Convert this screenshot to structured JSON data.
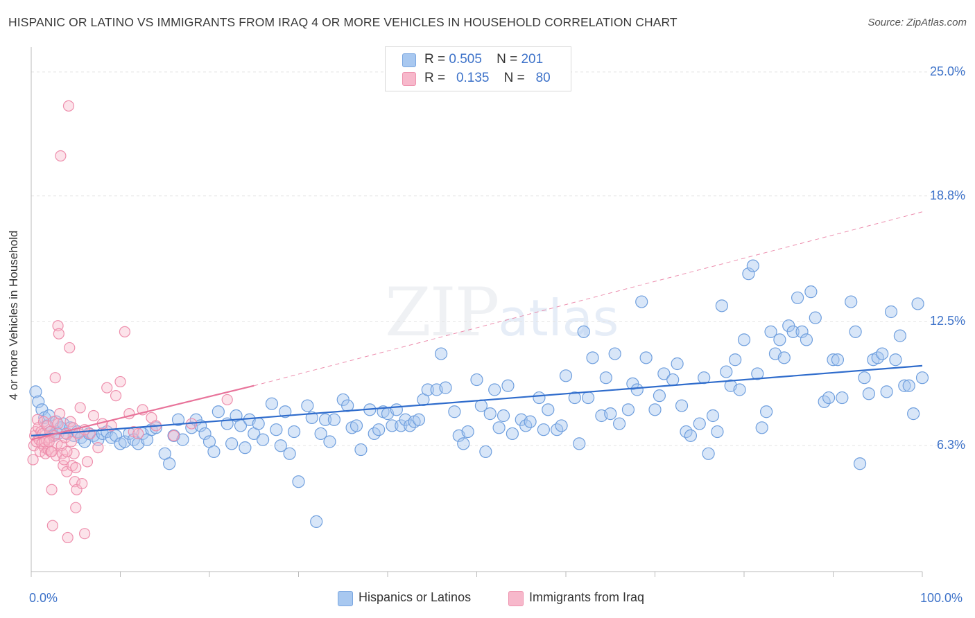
{
  "header": {
    "title": "HISPANIC OR LATINO VS IMMIGRANTS FROM IRAQ 4 OR MORE VEHICLES IN HOUSEHOLD CORRELATION CHART",
    "source": "Source: ZipAtlas.com"
  },
  "watermark": {
    "zip": "ZIP",
    "atlas": "atlas"
  },
  "legend_top": {
    "rows": [
      {
        "r_label": "R =",
        "r_value": "0.505",
        "n_label": "N =",
        "n_value": "201",
        "color": "#a8c8f0"
      },
      {
        "r_label": "R =",
        "r_value": "0.135",
        "n_label": "N =",
        "n_value": "80",
        "color": "#f7b8cb"
      }
    ]
  },
  "legend_bottom": {
    "items": [
      {
        "label": "Hispanics or Latinos",
        "color": "#a8c8f0"
      },
      {
        "label": "Immigrants from Iraq",
        "color": "#f7b8cb"
      }
    ]
  },
  "chart_data": {
    "type": "scatter",
    "title": "HISPANIC OR LATINO VS IMMIGRANTS FROM IRAQ 4 OR MORE VEHICLES IN HOUSEHOLD CORRELATION CHART",
    "xlabel": "",
    "ylabel": "4 or more Vehicles in Household",
    "xlim": [
      0,
      100
    ],
    "ylim": [
      0,
      26
    ],
    "x_tick_labels": [
      "0.0%",
      "100.0%"
    ],
    "y_ticks": [
      6.3,
      12.5,
      18.8,
      25.0
    ],
    "y_tick_labels": [
      "6.3%",
      "12.5%",
      "18.8%",
      "25.0%"
    ],
    "grid": true,
    "colors": {
      "blue": "#3d72c9",
      "blue_fill": "#a8c8f0",
      "pink": "#e8739a",
      "pink_fill": "#f7b8cb"
    },
    "series": [
      {
        "name": "Hispanics or Latinos",
        "color": "#3d72c9",
        "trend": {
          "x": [
            0,
            100
          ],
          "y": [
            6.8,
            10.3
          ]
        },
        "points": [
          [
            0.5,
            9.0
          ],
          [
            0.8,
            8.5
          ],
          [
            1.2,
            8.1
          ],
          [
            1.5,
            7.7
          ],
          [
            1.8,
            7.3
          ],
          [
            2.0,
            7.8
          ],
          [
            2.3,
            7.0
          ],
          [
            2.5,
            6.8
          ],
          [
            2.8,
            7.5
          ],
          [
            3.0,
            6.9
          ],
          [
            3.3,
            7.2
          ],
          [
            3.6,
            7.4
          ],
          [
            4.0,
            6.9
          ],
          [
            4.4,
            7.2
          ],
          [
            4.8,
            6.8
          ],
          [
            5.2,
            7.0
          ],
          [
            5.6,
            6.7
          ],
          [
            6.0,
            6.5
          ],
          [
            6.5,
            6.9
          ],
          [
            7.0,
            6.8
          ],
          [
            7.5,
            6.6
          ],
          [
            8.0,
            6.9
          ],
          [
            8.5,
            7.0
          ],
          [
            9.0,
            6.7
          ],
          [
            9.5,
            6.8
          ],
          [
            10.0,
            6.4
          ],
          [
            10.5,
            6.5
          ],
          [
            11.0,
            6.9
          ],
          [
            11.5,
            6.6
          ],
          [
            12.0,
            6.4
          ],
          [
            12.5,
            6.9
          ],
          [
            13.0,
            6.6
          ],
          [
            13.5,
            7.1
          ],
          [
            14.0,
            7.2
          ],
          [
            15.0,
            5.9
          ],
          [
            15.5,
            5.4
          ],
          [
            16.0,
            6.8
          ],
          [
            16.5,
            7.6
          ],
          [
            17.0,
            6.6
          ],
          [
            18.0,
            7.2
          ],
          [
            18.5,
            7.6
          ],
          [
            19.0,
            7.3
          ],
          [
            19.5,
            6.9
          ],
          [
            20.0,
            6.5
          ],
          [
            20.5,
            6.0
          ],
          [
            21.0,
            8.0
          ],
          [
            22.0,
            7.4
          ],
          [
            22.5,
            6.4
          ],
          [
            23.0,
            7.8
          ],
          [
            23.5,
            7.3
          ],
          [
            24.0,
            6.2
          ],
          [
            24.5,
            7.6
          ],
          [
            25.0,
            6.9
          ],
          [
            25.5,
            7.4
          ],
          [
            26.0,
            6.6
          ],
          [
            27.0,
            8.4
          ],
          [
            27.5,
            7.1
          ],
          [
            28.0,
            6.3
          ],
          [
            28.5,
            8.0
          ],
          [
            29.0,
            5.9
          ],
          [
            29.5,
            7.0
          ],
          [
            30.0,
            4.5
          ],
          [
            31.0,
            8.3
          ],
          [
            31.5,
            7.7
          ],
          [
            32.0,
            2.5
          ],
          [
            32.5,
            6.9
          ],
          [
            33.0,
            7.6
          ],
          [
            33.5,
            6.5
          ],
          [
            34.0,
            7.6
          ],
          [
            35.0,
            8.6
          ],
          [
            35.5,
            8.3
          ],
          [
            36.0,
            7.2
          ],
          [
            36.5,
            7.3
          ],
          [
            37.0,
            6.1
          ],
          [
            38.0,
            8.1
          ],
          [
            38.5,
            6.9
          ],
          [
            39.0,
            7.1
          ],
          [
            39.5,
            8.0
          ],
          [
            40.0,
            7.9
          ],
          [
            40.5,
            7.3
          ],
          [
            41.0,
            8.1
          ],
          [
            41.5,
            7.3
          ],
          [
            42.0,
            7.6
          ],
          [
            42.5,
            7.3
          ],
          [
            43.0,
            7.5
          ],
          [
            43.5,
            7.6
          ],
          [
            44.0,
            8.6
          ],
          [
            44.5,
            9.1
          ],
          [
            45.5,
            9.1
          ],
          [
            46.0,
            10.9
          ],
          [
            46.5,
            9.2
          ],
          [
            47.5,
            8.0
          ],
          [
            48.0,
            6.8
          ],
          [
            48.5,
            6.4
          ],
          [
            49.0,
            7.0
          ],
          [
            50.0,
            9.6
          ],
          [
            50.5,
            8.3
          ],
          [
            51.0,
            6.0
          ],
          [
            51.5,
            7.9
          ],
          [
            52.0,
            9.1
          ],
          [
            52.5,
            7.2
          ],
          [
            53.0,
            7.8
          ],
          [
            53.5,
            9.3
          ],
          [
            54.0,
            6.9
          ],
          [
            55.0,
            7.6
          ],
          [
            55.5,
            7.3
          ],
          [
            56.0,
            7.5
          ],
          [
            57.0,
            8.7
          ],
          [
            57.5,
            7.1
          ],
          [
            58.0,
            8.1
          ],
          [
            59.0,
            7.1
          ],
          [
            59.5,
            7.3
          ],
          [
            60.0,
            9.8
          ],
          [
            61.0,
            8.7
          ],
          [
            61.5,
            6.4
          ],
          [
            62.0,
            12.0
          ],
          [
            62.5,
            8.7
          ],
          [
            63.0,
            10.7
          ],
          [
            64.0,
            7.8
          ],
          [
            64.5,
            9.7
          ],
          [
            65.0,
            7.9
          ],
          [
            65.5,
            10.9
          ],
          [
            66.0,
            7.4
          ],
          [
            67.0,
            8.1
          ],
          [
            67.5,
            9.4
          ],
          [
            68.0,
            9.1
          ],
          [
            68.5,
            13.5
          ],
          [
            69.0,
            10.7
          ],
          [
            70.0,
            8.1
          ],
          [
            70.5,
            8.8
          ],
          [
            71.0,
            9.9
          ],
          [
            72.0,
            9.6
          ],
          [
            72.5,
            10.4
          ],
          [
            73.0,
            8.3
          ],
          [
            73.5,
            7.0
          ],
          [
            74.0,
            6.8
          ],
          [
            75.0,
            7.4
          ],
          [
            75.5,
            9.7
          ],
          [
            76.0,
            5.9
          ],
          [
            76.5,
            7.8
          ],
          [
            77.0,
            7.0
          ],
          [
            77.5,
            13.3
          ],
          [
            78.0,
            10.0
          ],
          [
            78.5,
            9.3
          ],
          [
            79.0,
            10.6
          ],
          [
            79.5,
            9.1
          ],
          [
            80.0,
            11.6
          ],
          [
            80.5,
            14.9
          ],
          [
            81.0,
            15.3
          ],
          [
            81.5,
            9.9
          ],
          [
            82.0,
            7.2
          ],
          [
            82.5,
            8.0
          ],
          [
            83.0,
            12.0
          ],
          [
            83.5,
            10.9
          ],
          [
            84.0,
            11.6
          ],
          [
            84.5,
            10.7
          ],
          [
            85.0,
            12.3
          ],
          [
            85.5,
            12.0
          ],
          [
            86.0,
            13.7
          ],
          [
            86.5,
            12.0
          ],
          [
            87.0,
            11.6
          ],
          [
            87.5,
            14.0
          ],
          [
            88.0,
            12.7
          ],
          [
            89.0,
            8.5
          ],
          [
            89.5,
            8.7
          ],
          [
            90.0,
            10.6
          ],
          [
            90.5,
            10.6
          ],
          [
            91.0,
            8.7
          ],
          [
            92.0,
            13.5
          ],
          [
            92.5,
            12.0
          ],
          [
            93.0,
            5.4
          ],
          [
            93.5,
            9.7
          ],
          [
            94.0,
            8.9
          ],
          [
            94.5,
            10.6
          ],
          [
            95.0,
            10.7
          ],
          [
            95.5,
            10.9
          ],
          [
            96.0,
            9.0
          ],
          [
            96.5,
            13.0
          ],
          [
            97.0,
            10.6
          ],
          [
            97.5,
            11.8
          ],
          [
            98.0,
            9.3
          ],
          [
            98.5,
            9.3
          ],
          [
            99.0,
            7.9
          ],
          [
            99.5,
            13.4
          ],
          [
            100.0,
            9.7
          ]
        ]
      },
      {
        "name": "Immigrants from Iraq",
        "color": "#e8739a",
        "trend": {
          "x": [
            0,
            25
          ],
          "y": [
            6.6,
            9.3
          ],
          "dashed_to": {
            "x": 100,
            "y": 18.0
          }
        },
        "points": [
          [
            0.2,
            5.6
          ],
          [
            0.3,
            6.3
          ],
          [
            0.4,
            6.8
          ],
          [
            0.5,
            7.0
          ],
          [
            0.6,
            6.5
          ],
          [
            0.7,
            7.6
          ],
          [
            0.8,
            7.2
          ],
          [
            0.9,
            6.6
          ],
          [
            1.0,
            6.0
          ],
          [
            1.1,
            7.0
          ],
          [
            1.2,
            6.4
          ],
          [
            1.3,
            6.9
          ],
          [
            1.4,
            7.5
          ],
          [
            1.5,
            6.2
          ],
          [
            1.6,
            5.9
          ],
          [
            1.7,
            6.6
          ],
          [
            1.8,
            7.3
          ],
          [
            1.9,
            6.1
          ],
          [
            2.0,
            6.7
          ],
          [
            2.1,
            7.0
          ],
          [
            2.2,
            6.0
          ],
          [
            2.3,
            4.1
          ],
          [
            2.4,
            2.3
          ],
          [
            2.5,
            7.5
          ],
          [
            2.6,
            6.8
          ],
          [
            2.7,
            9.7
          ],
          [
            2.8,
            5.8
          ],
          [
            2.9,
            6.4
          ],
          [
            3.0,
            12.3
          ],
          [
            3.1,
            11.9
          ],
          [
            3.2,
            7.9
          ],
          [
            3.3,
            20.8
          ],
          [
            3.4,
            6.3
          ],
          [
            3.5,
            5.9
          ],
          [
            3.6,
            5.3
          ],
          [
            3.7,
            5.6
          ],
          [
            3.8,
            6.7
          ],
          [
            3.9,
            6.9
          ],
          [
            4.0,
            5.0
          ],
          [
            4.1,
            1.7
          ],
          [
            4.2,
            23.3
          ],
          [
            4.3,
            11.2
          ],
          [
            4.4,
            7.5
          ],
          [
            4.5,
            6.5
          ],
          [
            4.6,
            5.3
          ],
          [
            4.7,
            7.2
          ],
          [
            4.8,
            5.9
          ],
          [
            4.9,
            4.5
          ],
          [
            5.0,
            3.2
          ],
          [
            5.1,
            4.1
          ],
          [
            5.3,
            6.9
          ],
          [
            5.5,
            8.2
          ],
          [
            5.7,
            4.4
          ],
          [
            6.0,
            1.9
          ],
          [
            6.3,
            5.5
          ],
          [
            6.6,
            6.9
          ],
          [
            7.0,
            7.8
          ],
          [
            7.5,
            6.2
          ],
          [
            8.0,
            7.4
          ],
          [
            8.5,
            9.2
          ],
          [
            9.0,
            7.3
          ],
          [
            9.5,
            8.8
          ],
          [
            10.0,
            9.5
          ],
          [
            10.5,
            12.0
          ],
          [
            11.0,
            7.9
          ],
          [
            11.5,
            7.0
          ],
          [
            12.0,
            6.9
          ],
          [
            12.5,
            8.1
          ],
          [
            13.5,
            7.7
          ],
          [
            14.0,
            7.3
          ],
          [
            16.0,
            6.8
          ],
          [
            18.0,
            7.4
          ],
          [
            22.0,
            8.6
          ],
          [
            2.3,
            6.0
          ],
          [
            1.5,
            6.5
          ],
          [
            3.0,
            7.4
          ],
          [
            4.0,
            6.0
          ],
          [
            5.0,
            5.2
          ],
          [
            6.0,
            7.1
          ],
          [
            2.0,
            6.5
          ]
        ]
      }
    ]
  }
}
